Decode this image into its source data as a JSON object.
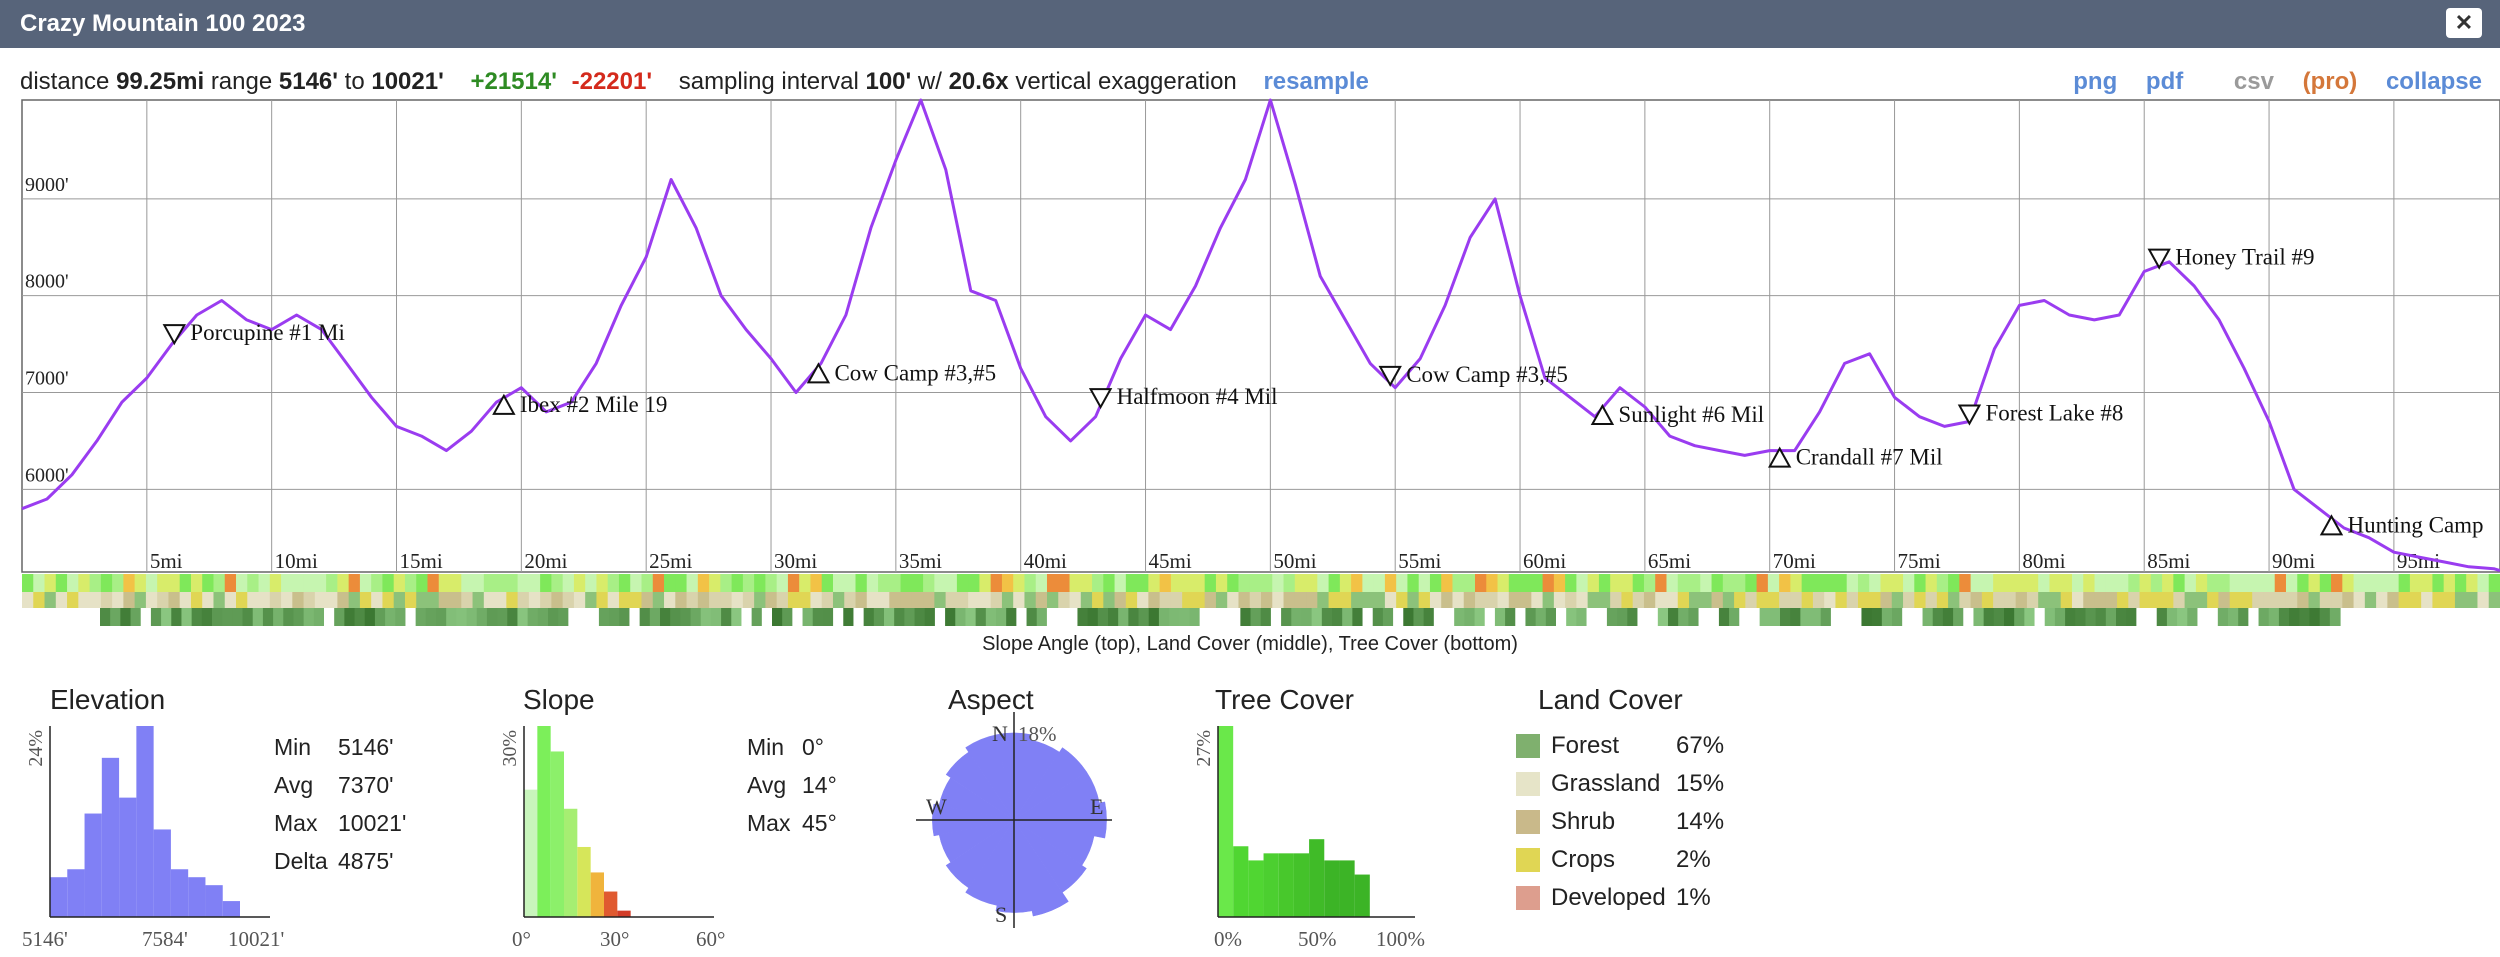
{
  "window": {
    "title": "Crazy Mountain 100 2023",
    "close_label": "✕"
  },
  "stats": {
    "distance_label": "distance",
    "distance": "99.25mi",
    "range_label": "range",
    "range_min": "5146'",
    "range_to": "to",
    "range_max": "10021'",
    "gain": "+21514'",
    "loss": "-22201'",
    "sampling_label": "sampling interval",
    "sampling": "100'",
    "w_label": "w/",
    "exaggeration": "20.6x",
    "exaggeration_label": "vertical exaggeration",
    "resample": "resample"
  },
  "links": {
    "png": "png",
    "pdf": "pdf",
    "csv": "csv",
    "pro": "(pro)",
    "collapse": "collapse"
  },
  "strip_caption": "Slope Angle (top), Land Cover (middle), Tree Cover (bottom)",
  "colors": {
    "profile": "#9a3cf0",
    "hist": "#8080f5",
    "accent_link": "#5b8bd6",
    "gain": "#2e8b23",
    "loss": "#d42a1c"
  },
  "chart_data": [
    {
      "type": "line",
      "name": "elevation-profile",
      "x_unit": "mi",
      "xlim": [
        0,
        99.25
      ],
      "ylim": [
        5146,
        10021
      ],
      "x_ticks": [
        5,
        10,
        15,
        20,
        25,
        30,
        35,
        40,
        45,
        50,
        55,
        60,
        65,
        70,
        75,
        80,
        85,
        90,
        95
      ],
      "x_tick_labels": [
        "5mi",
        "10mi",
        "15mi",
        "20mi",
        "25mi",
        "30mi",
        "35mi",
        "40mi",
        "45mi",
        "50mi",
        "55mi",
        "60mi",
        "65mi",
        "70mi",
        "75mi",
        "80mi",
        "85mi",
        "90mi",
        "95mi"
      ],
      "y_ticks": [
        6000,
        7000,
        8000,
        9000
      ],
      "y_tick_labels": [
        "6000'",
        "7000'",
        "8000'",
        "9000'"
      ],
      "grid": true,
      "series": [
        {
          "x": [
            0,
            1,
            2,
            3,
            4,
            5,
            6,
            7,
            8,
            9,
            10,
            11,
            12,
            13,
            14,
            15,
            16,
            17,
            18,
            19,
            20,
            21,
            22,
            23,
            24,
            25,
            26,
            27,
            28,
            29,
            30,
            31,
            32,
            33,
            34,
            35,
            36,
            37,
            38,
            39,
            40,
            41,
            42,
            43,
            44,
            45,
            46,
            47,
            48,
            49,
            50,
            51,
            52,
            53,
            54,
            55,
            56,
            57,
            58,
            59,
            60,
            61,
            62,
            63,
            64,
            65,
            66,
            67,
            68,
            69,
            70,
            71,
            72,
            73,
            74,
            75,
            76,
            77,
            78,
            79,
            80,
            81,
            82,
            83,
            84,
            85,
            86,
            87,
            88,
            89,
            90,
            91,
            92,
            93,
            94,
            95,
            96,
            97,
            98,
            99,
            99.25
          ],
          "y": [
            5800,
            5900,
            6150,
            6500,
            6900,
            7150,
            7500,
            7800,
            7950,
            7750,
            7650,
            7800,
            7650,
            7300,
            6950,
            6650,
            6550,
            6400,
            6600,
            6900,
            7050,
            6800,
            6900,
            7300,
            7900,
            8400,
            9200,
            8700,
            8000,
            7650,
            7350,
            7000,
            7300,
            7800,
            8700,
            9400,
            10021,
            9300,
            8050,
            7950,
            7250,
            6750,
            6500,
            6750,
            7350,
            7800,
            7650,
            8100,
            8700,
            9200,
            10021,
            9150,
            8200,
            7750,
            7300,
            7050,
            7350,
            7900,
            8600,
            9000,
            8000,
            7150,
            6950,
            6750,
            7050,
            6850,
            6550,
            6450,
            6400,
            6350,
            6400,
            6400,
            6800,
            7300,
            7400,
            6950,
            6750,
            6650,
            6700,
            7450,
            7900,
            7950,
            7800,
            7750,
            7800,
            8250,
            8350,
            8100,
            7750,
            7250,
            6700,
            6000,
            5800,
            5600,
            5500,
            5350,
            5300,
            5250,
            5200,
            5180,
            5160
          ]
        }
      ],
      "waypoints": [
        {
          "label": "Porcupine #1 Mi",
          "mile": 6.1,
          "dir": "down"
        },
        {
          "label": "Ibex #2 Mile 19",
          "mile": 19.3,
          "dir": "up"
        },
        {
          "label": "Cow Camp #3,#5",
          "mile": 31.9,
          "dir": "up"
        },
        {
          "label": "Halfmoon #4 Mil",
          "mile": 43.2,
          "dir": "down"
        },
        {
          "label": "Cow Camp #3,#5",
          "mile": 54.8,
          "dir": "down"
        },
        {
          "label": "Sunlight #6 Mil",
          "mile": 63.3,
          "dir": "up"
        },
        {
          "label": "Crandall #7 Mil",
          "mile": 70.4,
          "dir": "up"
        },
        {
          "label": "Forest Lake #8",
          "mile": 78.0,
          "dir": "down"
        },
        {
          "label": "Honey Trail #9",
          "mile": 85.6,
          "dir": "down"
        },
        {
          "label": "Hunting Camp",
          "mile": 92.5,
          "dir": "up"
        }
      ]
    },
    {
      "type": "bar",
      "name": "elevation-histogram",
      "title": "Elevation",
      "x_tick_labels": [
        "5146'",
        "7584'",
        "10021'"
      ],
      "y_max_label": "24%",
      "ylim": [
        0,
        24
      ],
      "values": [
        5,
        6,
        13,
        20,
        15,
        24,
        11,
        6,
        5,
        4,
        2
      ]
    },
    {
      "type": "bar",
      "name": "slope-histogram",
      "title": "Slope",
      "x_tick_labels": [
        "0°",
        "30°",
        "60°"
      ],
      "y_max_label": "30%",
      "ylim": [
        0,
        30
      ],
      "values": [
        20,
        30,
        26,
        17,
        11,
        7,
        4,
        1,
        0,
        0,
        0,
        0
      ],
      "colors": [
        "#c8f5bc",
        "#7cef5a",
        "#8cf06a",
        "#a6ee72",
        "#d6e65a",
        "#f0b43c",
        "#e05a30",
        "#d23c28",
        "#d23c28",
        "#d23c28",
        "#d23c28",
        "#d23c28"
      ]
    },
    {
      "type": "pie",
      "name": "aspect-rose",
      "title": "Aspect",
      "max_label": "18%",
      "directions": [
        "N",
        "E",
        "S",
        "W"
      ],
      "values": [
        16,
        15,
        16,
        16,
        17,
        15,
        16,
        18,
        17,
        16,
        15,
        14,
        15,
        14,
        15,
        16
      ]
    },
    {
      "type": "bar",
      "name": "tree-cover-histogram",
      "title": "Tree Cover",
      "x_tick_labels": [
        "0%",
        "50%",
        "100%"
      ],
      "y_max_label": "27%",
      "ylim": [
        0,
        27
      ],
      "values": [
        27,
        10,
        8,
        9,
        9,
        9,
        11,
        8,
        8,
        6,
        0
      ],
      "colors": [
        "#6ae84a",
        "#50d632",
        "#50d632",
        "#4ccf30",
        "#48c82c",
        "#44c22a",
        "#40bb28",
        "#3cb426",
        "#3cb426",
        "#3cb426",
        "#3cb426"
      ]
    }
  ],
  "elevation_stats": [
    {
      "label": "Min",
      "value": "5146'"
    },
    {
      "label": "Avg",
      "value": "7370'"
    },
    {
      "label": "Max",
      "value": "10021'"
    },
    {
      "label": "Delta",
      "value": "4875'"
    }
  ],
  "slope_stats": [
    {
      "label": "Min",
      "value": "0°"
    },
    {
      "label": "Avg",
      "value": "14°"
    },
    {
      "label": "Max",
      "value": "45°"
    }
  ],
  "land_cover": [
    {
      "label": "Forest",
      "value": "67%",
      "color": "#7fb06e"
    },
    {
      "label": "Grassland",
      "value": "15%",
      "color": "#e6e4c8"
    },
    {
      "label": "Shrub",
      "value": "14%",
      "color": "#c9b98a"
    },
    {
      "label": "Crops",
      "value": "2%",
      "color": "#e0d654"
    },
    {
      "label": "Developed",
      "value": "1%",
      "color": "#dd9e8e"
    }
  ],
  "land_cover_title": "Land Cover"
}
